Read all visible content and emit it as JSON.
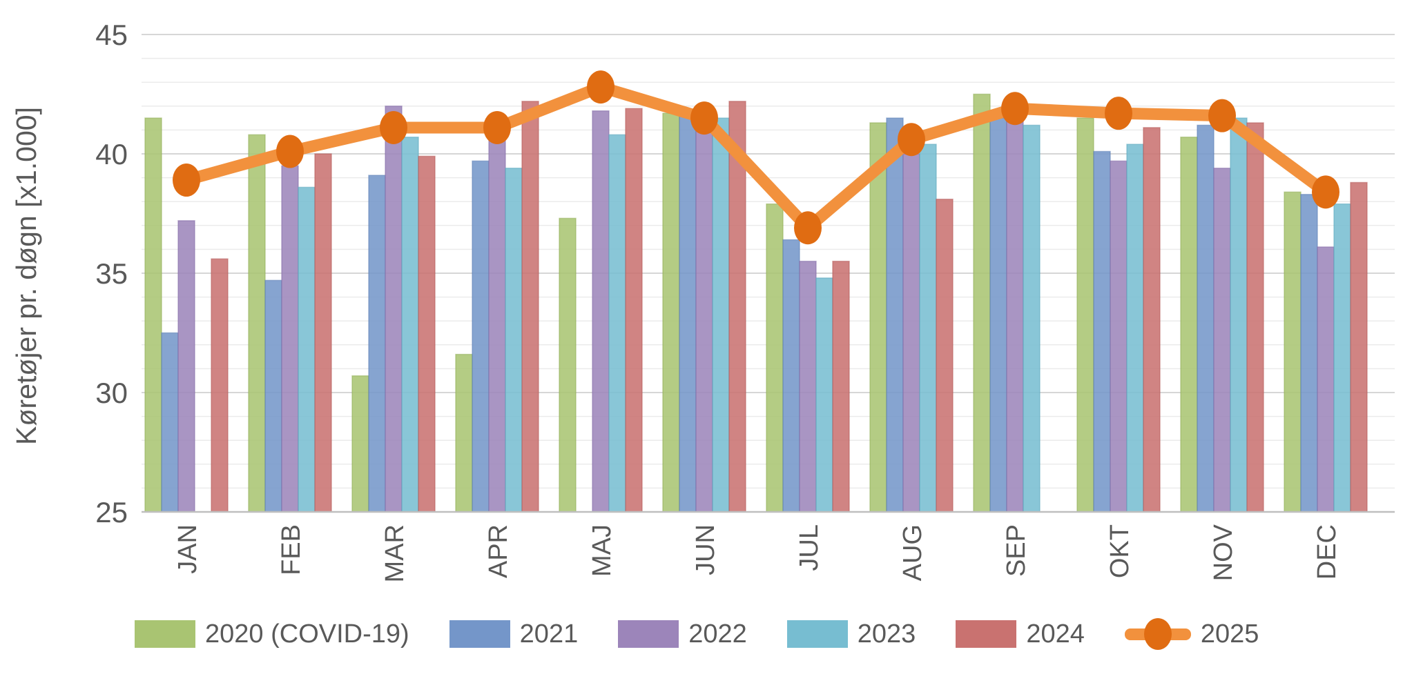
{
  "styles": {
    "text_color": "#595959",
    "axis_line_color": "#bfbfbf",
    "major_grid_color": "#d6d6d6",
    "minor_grid_color": "#ebebeb",
    "background": "#ffffff"
  },
  "chart_data": {
    "type": "bar",
    "title": "",
    "xlabel": "",
    "ylabel": "Køretøjer pr. døgn [x1.000]",
    "ylim": [
      25,
      45
    ],
    "y_ticks": [
      25,
      30,
      35,
      40,
      45
    ],
    "y_minor_step": 1,
    "grid": true,
    "legend_position": "bottom",
    "categories": [
      "JAN",
      "FEB",
      "MAR",
      "APR",
      "MAJ",
      "JUN",
      "JUL",
      "AUG",
      "SEP",
      "OKT",
      "NOV",
      "DEC"
    ],
    "series": [
      {
        "name": "2020 (COVID-19)",
        "type": "bar",
        "color": "#a9c472",
        "edge": "#92ae59",
        "values": [
          41.5,
          40.8,
          30.7,
          31.6,
          37.3,
          41.7,
          37.9,
          41.3,
          42.5,
          41.5,
          40.7,
          38.4
        ]
      },
      {
        "name": "2021",
        "type": "bar",
        "color": "#7496c9",
        "edge": "#5e81b6",
        "values": [
          32.5,
          34.7,
          39.1,
          39.7,
          null,
          41.8,
          36.4,
          41.5,
          41.5,
          40.1,
          41.2,
          38.3
        ]
      },
      {
        "name": "2022",
        "type": "bar",
        "color": "#9c85ba",
        "edge": "#8770a9",
        "values": [
          37.2,
          39.5,
          42.0,
          41.0,
          41.8,
          41.9,
          35.5,
          40.0,
          41.4,
          39.7,
          39.4,
          36.1
        ]
      },
      {
        "name": "2023",
        "type": "bar",
        "color": "#77bdd1",
        "edge": "#5ea9bf",
        "values": [
          null,
          38.6,
          40.7,
          39.4,
          40.8,
          41.5,
          34.8,
          40.4,
          41.2,
          40.4,
          41.5,
          37.9
        ]
      },
      {
        "name": "2024",
        "type": "bar",
        "color": "#c97270",
        "edge": "#b65e5d",
        "values": [
          35.6,
          40.0,
          39.9,
          42.2,
          41.9,
          42.2,
          35.5,
          38.1,
          null,
          41.1,
          41.3,
          38.8
        ]
      },
      {
        "name": "2025",
        "type": "line",
        "color": "#f2913d",
        "marker_color": "#e06c12",
        "values": [
          38.9,
          40.1,
          41.1,
          41.1,
          42.8,
          41.5,
          36.9,
          40.6,
          41.9,
          41.7,
          41.6,
          38.4
        ]
      }
    ]
  }
}
